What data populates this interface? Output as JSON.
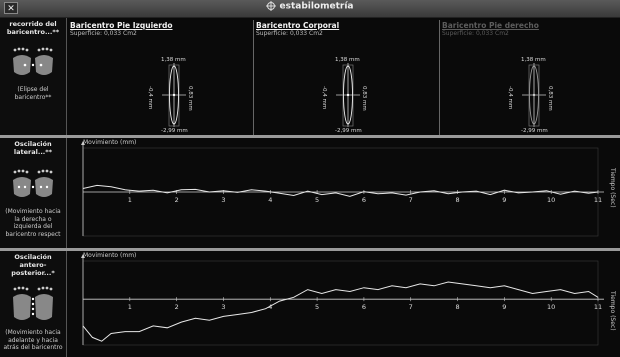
{
  "window": {
    "title": "estabilometría",
    "close_label": "✕"
  },
  "sections": [
    {
      "title": "recorrido del baricentro...**",
      "desc": "(Elipse del baricentro**"
    },
    {
      "title": "Oscilación lateral...**",
      "desc": "(Movimiento hacia la derecha o izquierda del baricentro respect"
    },
    {
      "title": "Oscilación antero-posterior...*",
      "desc": "(Movimiento hacia adelante y hacia atrás del baricentro"
    }
  ],
  "ellipse_panels": [
    {
      "title": "Baricentro Pie Izquierdo",
      "subtitle": "Superficie: 0,033 Cm2",
      "top": "1,38 mm",
      "bottom": "-2,99 mm",
      "left": "-0,4 mm",
      "right": "0,83 mm",
      "active": true
    },
    {
      "title": "Baricentro Corporal",
      "subtitle": "Superficie: 0,033 Cm2",
      "top": "1,38 mm",
      "bottom": "-2,99 mm",
      "left": "-0,4 mm",
      "right": "0,83 mm",
      "active": true
    },
    {
      "title": "Baricentro Pie derecho",
      "subtitle": "Superficie: 0,033 Cm2",
      "top": "1,38 mm",
      "bottom": "-2,99 mm",
      "left": "-0,4 mm",
      "right": "0,83 mm",
      "active": false
    }
  ],
  "chart_data": [
    {
      "type": "line",
      "ylabel": "Movimiento (mm)",
      "xlabel": "Tiempo (Sec)",
      "x_ticks": [
        "1",
        "2",
        "3",
        "4",
        "5",
        "6",
        "7",
        "8",
        "9",
        "10",
        "11"
      ],
      "xlim": [
        0,
        11
      ],
      "ylim": [
        -1,
        1
      ],
      "x": [
        0,
        0.3,
        0.6,
        0.9,
        1.2,
        1.5,
        1.8,
        2.1,
        2.4,
        2.7,
        3.0,
        3.3,
        3.6,
        3.9,
        4.2,
        4.5,
        4.8,
        5.1,
        5.4,
        5.7,
        6.0,
        6.3,
        6.6,
        6.9,
        7.2,
        7.5,
        7.8,
        8.1,
        8.4,
        8.7,
        9.0,
        9.3,
        9.6,
        9.9,
        10.2,
        10.5,
        10.8,
        11.0
      ],
      "y": [
        0.08,
        0.15,
        0.12,
        0.05,
        0.02,
        0.04,
        -0.02,
        0.05,
        0.06,
        0.0,
        0.03,
        -0.01,
        0.05,
        0.02,
        -0.03,
        -0.08,
        0.02,
        -0.06,
        -0.02,
        -0.1,
        0.01,
        -0.04,
        -0.02,
        -0.07,
        0.0,
        0.03,
        -0.04,
        0.0,
        0.02,
        -0.06,
        0.04,
        -0.02,
        0.0,
        0.03,
        -0.05,
        0.02,
        -0.03,
        0.0
      ]
    },
    {
      "type": "line",
      "ylabel": "Movimiento (mm)",
      "xlabel": "Tiempo (Sec)",
      "x_ticks": [
        "1",
        "2",
        "3",
        "4",
        "5",
        "6",
        "7",
        "8",
        "9",
        "10",
        "11"
      ],
      "xlim": [
        0,
        11
      ],
      "ylim": [
        -1.2,
        1.0
      ],
      "x": [
        0,
        0.2,
        0.4,
        0.6,
        0.9,
        1.2,
        1.5,
        1.8,
        2.1,
        2.4,
        2.7,
        3.0,
        3.3,
        3.6,
        3.9,
        4.2,
        4.5,
        4.8,
        5.1,
        5.4,
        5.7,
        6.0,
        6.3,
        6.6,
        6.9,
        7.2,
        7.5,
        7.8,
        8.1,
        8.4,
        8.7,
        9.0,
        9.3,
        9.6,
        9.9,
        10.2,
        10.5,
        10.8,
        11.0
      ],
      "y": [
        -0.7,
        -1.0,
        -1.1,
        -0.9,
        -0.85,
        -0.85,
        -0.7,
        -0.75,
        -0.6,
        -0.5,
        -0.55,
        -0.45,
        -0.4,
        -0.35,
        -0.25,
        -0.05,
        0.05,
        0.25,
        0.15,
        0.25,
        0.2,
        0.3,
        0.25,
        0.35,
        0.3,
        0.4,
        0.35,
        0.45,
        0.4,
        0.35,
        0.3,
        0.35,
        0.25,
        0.15,
        0.2,
        0.25,
        0.15,
        0.2,
        0.05
      ]
    }
  ]
}
